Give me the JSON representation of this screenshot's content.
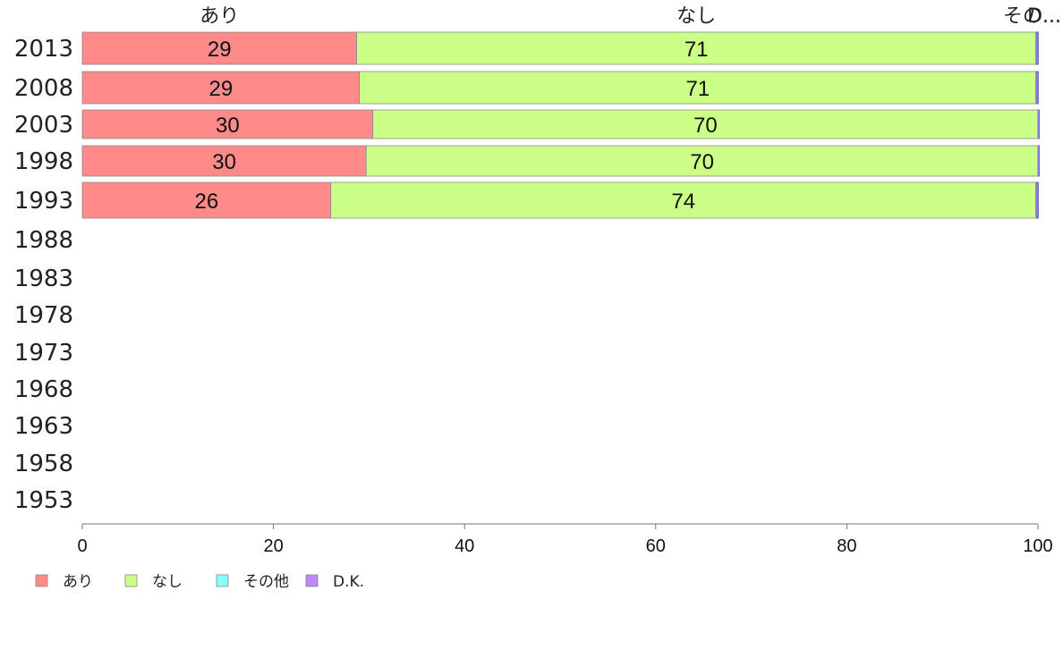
{
  "chart_data": {
    "type": "bar",
    "orientation": "horizontal",
    "stacked": true,
    "categories": [
      "2013",
      "2008",
      "2003",
      "1998",
      "1993",
      "1988",
      "1983",
      "1978",
      "1973",
      "1968",
      "1963",
      "1958",
      "1953"
    ],
    "series": [
      {
        "name": "あり",
        "color": "#ff8a8a",
        "values": [
          28.7,
          29.0,
          30.4,
          29.7,
          26.0,
          null,
          null,
          null,
          null,
          null,
          null,
          null,
          null
        ],
        "labels": [
          "29",
          "29",
          "30",
          "30",
          "26",
          "",
          "",
          "",
          "",
          "",
          "",
          "",
          ""
        ]
      },
      {
        "name": "なし",
        "color": "#ccff88",
        "values": [
          71.1,
          70.8,
          69.6,
          70.3,
          73.8,
          null,
          null,
          null,
          null,
          null,
          null,
          null,
          null
        ],
        "labels": [
          "71",
          "71",
          "70",
          "70",
          "74",
          "",
          "",
          "",
          "",
          "",
          "",
          "",
          ""
        ]
      },
      {
        "name": "その他",
        "color": "#88ffff",
        "values": [
          0.1,
          0.1,
          0,
          0,
          0.1,
          null,
          null,
          null,
          null,
          null,
          null,
          null,
          null
        ],
        "labels": [
          "",
          "",
          "",
          "",
          "",
          "",
          "",
          "",
          "",
          "",
          "",
          "",
          ""
        ]
      },
      {
        "name": "D.K.",
        "color": "#bb88ff",
        "values": [
          0.1,
          0.1,
          0,
          0,
          0.1,
          null,
          null,
          null,
          null,
          null,
          null,
          null,
          null
        ],
        "labels": [
          "",
          "",
          "",
          "",
          "",
          "",
          "",
          "",
          "",
          "",
          "",
          "",
          ""
        ]
      }
    ],
    "top_labels": [
      "あり",
      "なし",
      "その...",
      "D..."
    ],
    "xlim": [
      0,
      100
    ],
    "xticks": [
      "0",
      "20",
      "40",
      "60",
      "80",
      "100"
    ],
    "title": "",
    "xlabel": "",
    "ylabel": "",
    "grid": false,
    "legend_position": "bottom-left"
  }
}
